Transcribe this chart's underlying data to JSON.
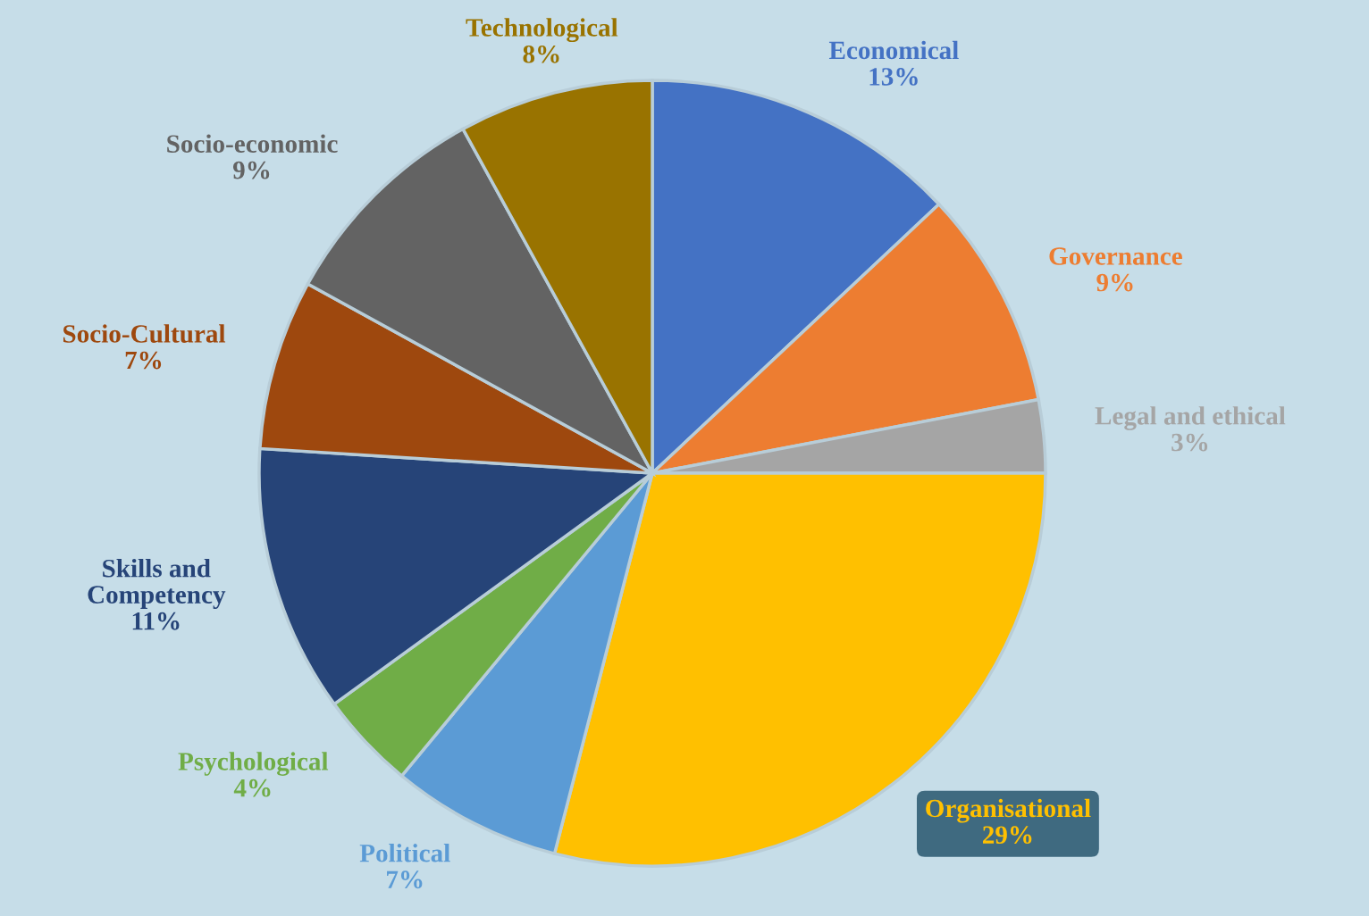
{
  "chart_data": {
    "type": "pie",
    "categories": [
      "Economical",
      "Governance",
      "Legal and ethical",
      "Organisational",
      "Political",
      "Psychological",
      "Skills and Competency",
      "Socio-Cultural",
      "Socio-economic",
      "Technological"
    ],
    "values": [
      13,
      9,
      3,
      29,
      7,
      4,
      11,
      7,
      9,
      8
    ],
    "value_labels": [
      "13%",
      "9%",
      "3%",
      "29%",
      "7%",
      "4%",
      "11%",
      "7%",
      "9%",
      "8%"
    ],
    "colors": [
      "#4472c4",
      "#ed7d31",
      "#a5a5a5",
      "#ffc000",
      "#5b9bd5",
      "#70ad47",
      "#264478",
      "#9e480e",
      "#636363",
      "#997300"
    ]
  }
}
